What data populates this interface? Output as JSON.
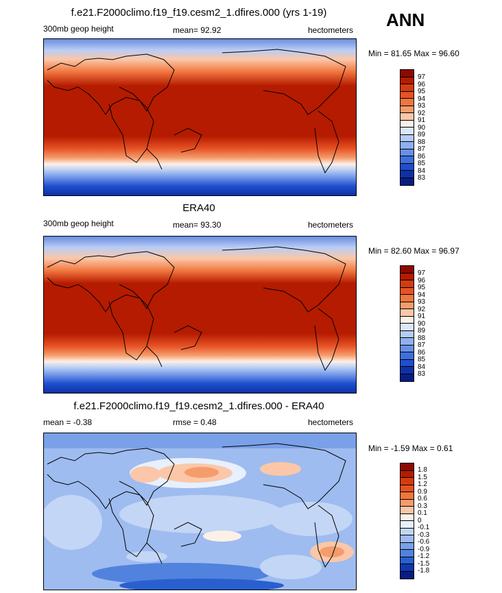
{
  "season": "ANN",
  "panels": [
    {
      "id": "model",
      "title": "f.e21.F2000climo.f19_f19.cesm2_1.dfires.000 (yrs 1-19)",
      "left": "300mb geop height",
      "center": "mean=  92.92",
      "right": "hectometers",
      "minmax": "Min =  81.65 Max =  96.60",
      "colorbar": {
        "labels": [
          "97",
          "96",
          "95",
          "94",
          "93",
          "92",
          "91",
          "90",
          "89",
          "88",
          "87",
          "86",
          "85",
          "84",
          "83"
        ],
        "colors": [
          "#8c0a00",
          "#b51b00",
          "#d33c10",
          "#e65224",
          "#f0763e",
          "#f59c6c",
          "#fbc7a8",
          "#fdf0e6",
          "#dbe7fb",
          "#b6ccf5",
          "#8eb0ee",
          "#6890e6",
          "#3f6fdd",
          "#1f4fce",
          "#0e31a8",
          "#081d83"
        ]
      }
    },
    {
      "id": "obs",
      "title": "ERA40",
      "left": "300mb geop height",
      "center": "mean=  93.30",
      "right": "hectometers",
      "minmax": "Min =  82.60 Max =  96.97",
      "colorbar": {
        "labels": [
          "97",
          "96",
          "95",
          "94",
          "93",
          "92",
          "91",
          "90",
          "89",
          "88",
          "87",
          "86",
          "85",
          "84",
          "83"
        ],
        "colors": [
          "#8c0a00",
          "#b51b00",
          "#d33c10",
          "#e65224",
          "#f0763e",
          "#f59c6c",
          "#fbc7a8",
          "#fdf0e6",
          "#dbe7fb",
          "#b6ccf5",
          "#8eb0ee",
          "#6890e6",
          "#3f6fdd",
          "#1f4fce",
          "#0e31a8",
          "#081d83"
        ]
      }
    },
    {
      "id": "diff",
      "title": "f.e21.F2000climo.f19_f19.cesm2_1.dfires.000 - ERA40",
      "left": "mean =  -0.38",
      "center": "rmse =   0.48",
      "right": "hectometers",
      "minmax": "Min =  -1.59 Max =   0.61",
      "colorbar": {
        "labels": [
          "1.8",
          "1.5",
          "1.2",
          "0.9",
          "0.6",
          "0.3",
          "0.1",
          "0",
          "-0.1",
          "-0.3",
          "-0.6",
          "-0.9",
          "-1.2",
          "-1.5",
          "-1.8"
        ],
        "colors": [
          "#8c0a00",
          "#b51b00",
          "#d33c10",
          "#e65224",
          "#f0763e",
          "#f59c6c",
          "#fbc7a8",
          "#fdf0e6",
          "#e8f0fd",
          "#c3d6f6",
          "#9ebcef",
          "#7aa0e8",
          "#5182dd",
          "#2a5fd0",
          "#0f37b0",
          "#081d83"
        ]
      }
    }
  ]
}
